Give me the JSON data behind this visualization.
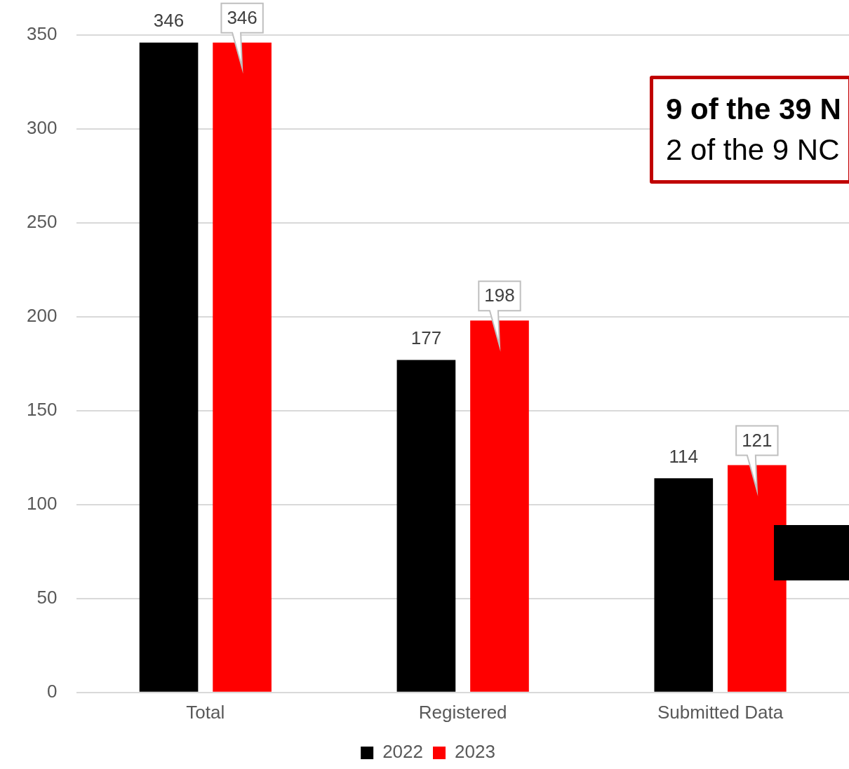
{
  "chart_data": {
    "type": "bar",
    "categories": [
      "Total",
      "Registered",
      "Submitted Data"
    ],
    "series": [
      {
        "name": "2022",
        "color": "#000000",
        "values": [
          346,
          177,
          114
        ]
      },
      {
        "name": "2023",
        "color": "#ff0000",
        "values": [
          346,
          198,
          121
        ]
      }
    ],
    "ylim": [
      0,
      350
    ],
    "yticks": [
      0,
      50,
      100,
      150,
      200,
      250,
      300,
      350
    ],
    "grid": "y",
    "legend": "bottom",
    "data_labels": true,
    "annotations": [
      "9 of the 39 N",
      "2 of the 9 NC"
    ]
  }
}
